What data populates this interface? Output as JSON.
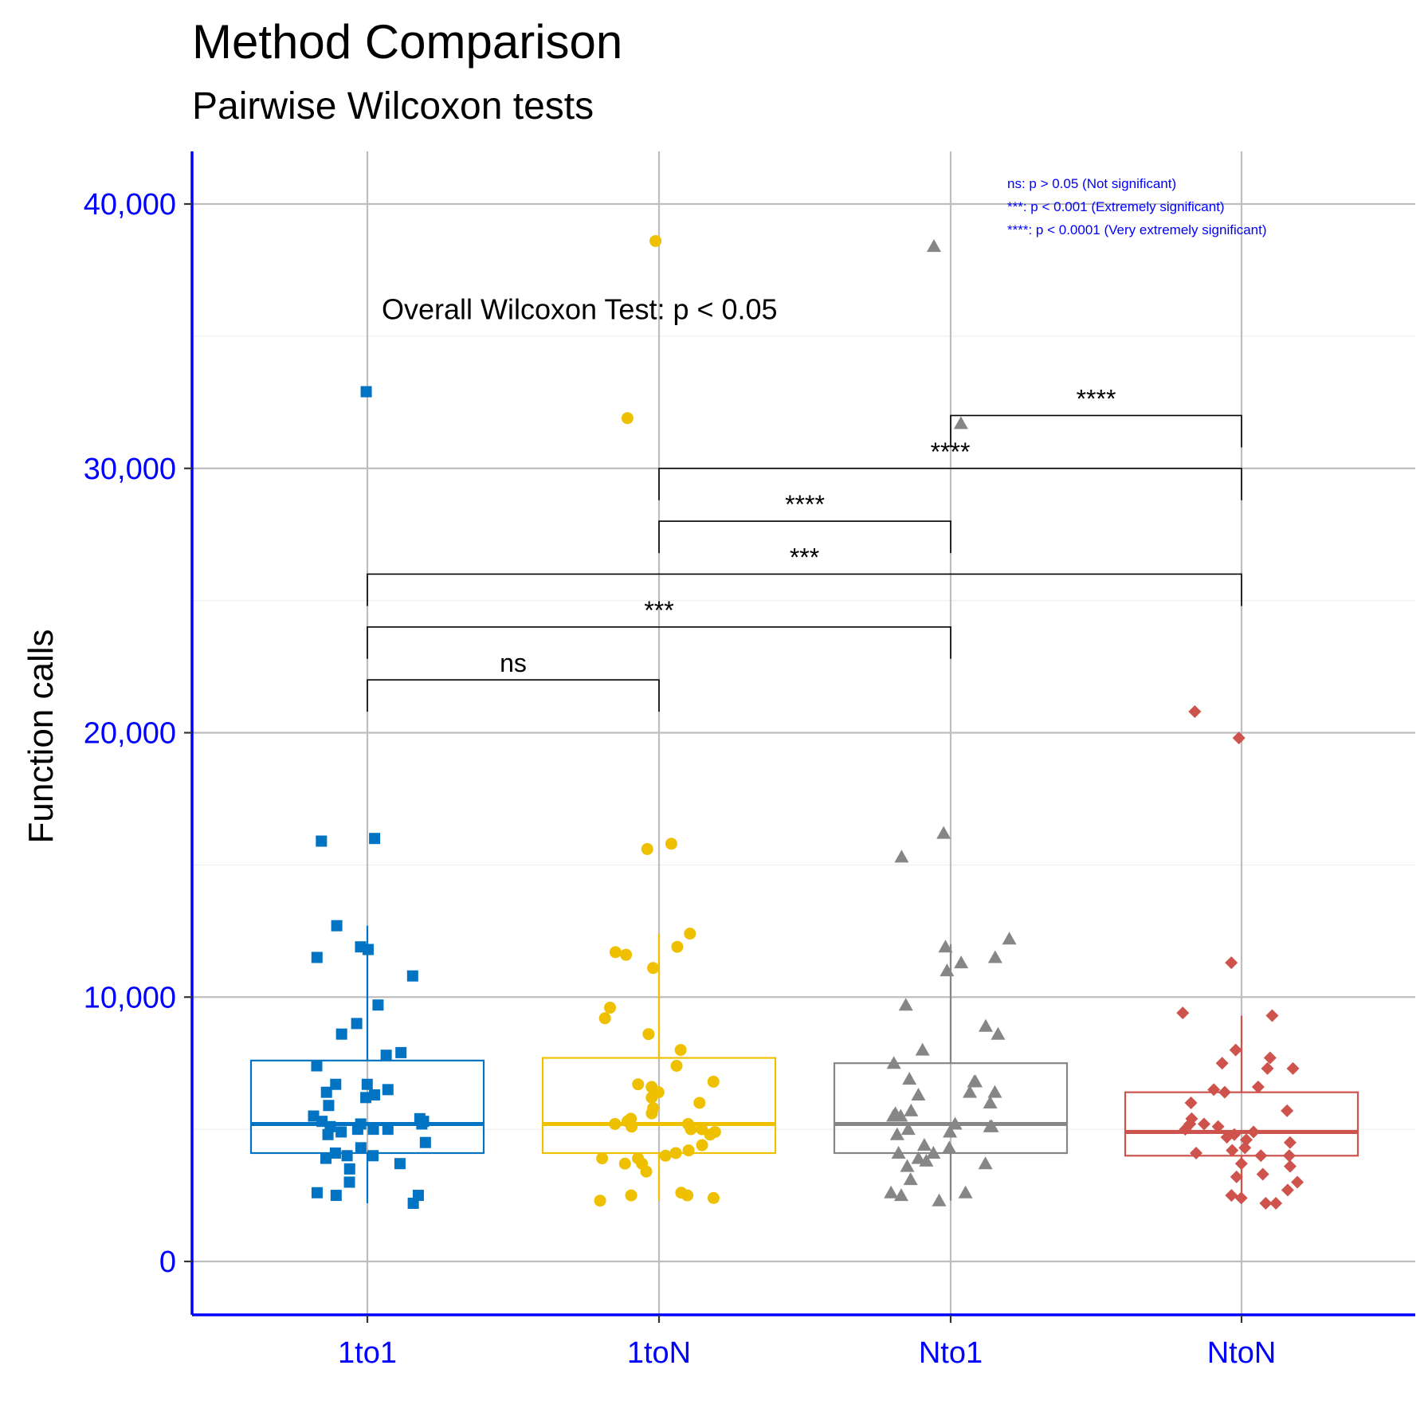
{
  "chart_data": {
    "type": "box",
    "title": "Method Comparison",
    "subtitle": "Pairwise Wilcoxon tests",
    "xlabel": "",
    "ylabel": "Function calls",
    "ylim": [
      -2000,
      42000
    ],
    "y_ticks": [
      0,
      10000,
      20000,
      30000,
      40000
    ],
    "y_tick_labels": [
      "0",
      "10,000",
      "20,000",
      "30,000",
      "40,000"
    ],
    "grid": true,
    "categories": [
      "1to1",
      "1toN",
      "Nto1",
      "NtoN"
    ],
    "colors": [
      "#0073C2",
      "#EFC000",
      "#868686",
      "#CD534C"
    ],
    "markers": [
      "square",
      "circle",
      "triangle",
      "diamond"
    ],
    "axis_color": "#0000FF",
    "boxes": [
      {
        "category": "1to1",
        "whisker_low": 2200,
        "q1": 4100,
        "median": 5200,
        "q3": 7600,
        "whisker_high": 12700
      },
      {
        "category": "1toN",
        "whisker_low": 2300,
        "q1": 4100,
        "median": 5200,
        "q3": 7700,
        "whisker_high": 12400
      },
      {
        "category": "Nto1",
        "whisker_low": 2300,
        "q1": 4100,
        "median": 5200,
        "q3": 7500,
        "whisker_high": 12000
      },
      {
        "category": "NtoN",
        "whisker_low": 2200,
        "q1": 4000,
        "median": 4900,
        "q3": 6400,
        "whisker_high": 9300
      }
    ],
    "points": [
      {
        "category": "1to1",
        "values": [
          32900,
          16000,
          15900,
          12700,
          11900,
          11800,
          11500,
          10800,
          9700,
          9000,
          8600,
          7900,
          7800,
          7400,
          6700,
          6700,
          6500,
          6400,
          6300,
          6200,
          5900,
          5500,
          5400,
          5300,
          5300,
          5200,
          5200,
          5100,
          5000,
          5000,
          5000,
          4900,
          4800,
          4500,
          4300,
          4100,
          4000,
          4000,
          3900,
          3700,
          3500,
          3000,
          2600,
          2500,
          2500,
          2200
        ]
      },
      {
        "category": "1toN",
        "values": [
          38600,
          31900,
          15800,
          15600,
          12400,
          11900,
          11700,
          11600,
          11100,
          9600,
          9200,
          8600,
          8000,
          7400,
          6800,
          6700,
          6600,
          6400,
          6200,
          6000,
          5800,
          5600,
          5400,
          5300,
          5200,
          5200,
          5100,
          5000,
          5000,
          4900,
          4800,
          4400,
          4200,
          4100,
          4000,
          3900,
          3900,
          3700,
          3700,
          3400,
          2600,
          2500,
          2500,
          2400,
          2300
        ]
      },
      {
        "category": "Nto1",
        "values": [
          38400,
          31700,
          16200,
          15300,
          12200,
          11900,
          11500,
          11300,
          11000,
          9700,
          8900,
          8600,
          8000,
          7500,
          6900,
          6800,
          6800,
          6400,
          6400,
          6300,
          6000,
          5700,
          5600,
          5500,
          5500,
          5200,
          5100,
          5100,
          5000,
          4900,
          4800,
          4400,
          4300,
          4100,
          4100,
          3900,
          3800,
          3700,
          3600,
          3100,
          2600,
          2600,
          2500,
          2300
        ]
      },
      {
        "category": "NtoN",
        "values": [
          20800,
          19800,
          11300,
          9400,
          9300,
          8000,
          7700,
          7500,
          7300,
          7300,
          6600,
          6500,
          6400,
          6000,
          5700,
          5400,
          5200,
          5200,
          5100,
          5000,
          4900,
          4800,
          4700,
          4600,
          4500,
          4300,
          4200,
          4100,
          4000,
          4000,
          3700,
          3600,
          3300,
          3200,
          3000,
          2700,
          2500,
          2400,
          2200,
          2200
        ]
      }
    ],
    "comparisons": [
      {
        "group1": "1to1",
        "group2": "1toN",
        "label": "ns",
        "y": 22000
      },
      {
        "group1": "1to1",
        "group2": "Nto1",
        "label": "***",
        "y": 24000
      },
      {
        "group1": "1to1",
        "group2": "NtoN",
        "label": "***",
        "y": 26000
      },
      {
        "group1": "1toN",
        "group2": "Nto1",
        "label": "****",
        "y": 28000
      },
      {
        "group1": "1toN",
        "group2": "NtoN",
        "label": "****",
        "y": 30000
      },
      {
        "group1": "Nto1",
        "group2": "NtoN",
        "label": "****",
        "y": 32000
      }
    ],
    "overall_test": {
      "label": "Overall Wilcoxon Test: p < 0.05",
      "category": "1to1",
      "y": 36000
    },
    "legend_notes": [
      "ns: p > 0.05 (Not significant)",
      "***: p < 0.001 (Extremely significant)",
      "****: p < 0.0001 (Very extremely significant)"
    ],
    "legend_placement": "top-right"
  }
}
